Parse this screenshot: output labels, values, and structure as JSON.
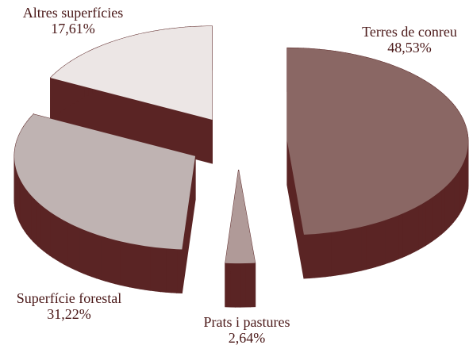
{
  "chart_data": {
    "type": "pie",
    "categories": [
      "Terres de conreu",
      "Prats i pastures",
      "Superfície forestal",
      "Altres superfícies"
    ],
    "values": [
      48.53,
      2.64,
      31.22,
      17.61
    ],
    "value_labels": [
      "48,53%",
      "2,64%",
      "31,22%",
      "17,61%"
    ],
    "colors": [
      "#8a6764",
      "#b09a98",
      "#bfb3b2",
      "#ece6e5"
    ],
    "side_color": "#5a2424"
  }
}
